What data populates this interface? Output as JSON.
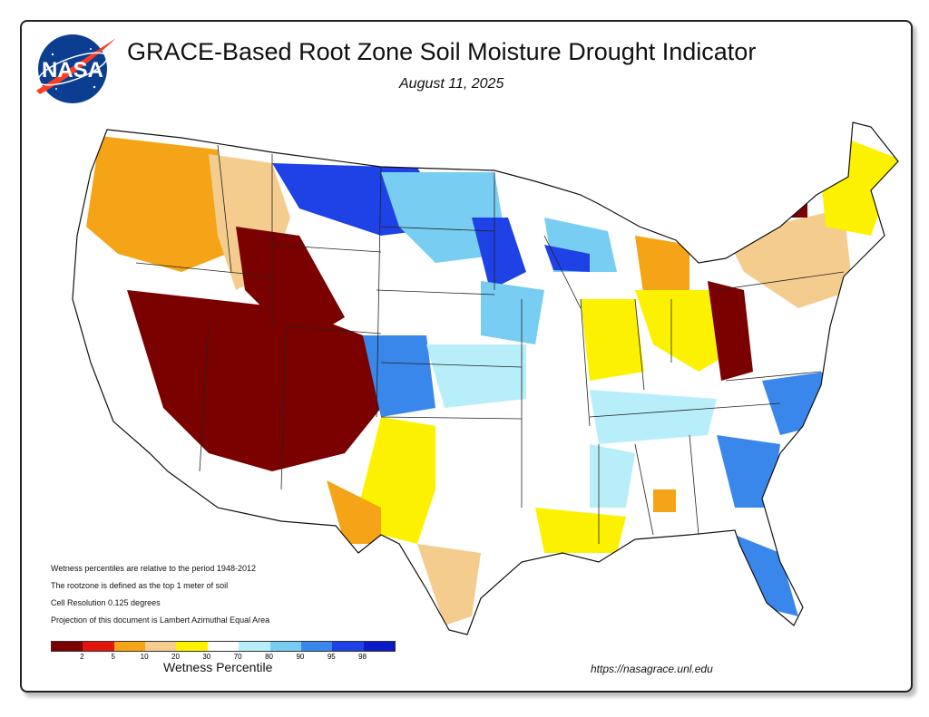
{
  "header": {
    "title": "GRACE-Based Root Zone Soil  Moisture Drought Indicator",
    "date": "August 11, 2025",
    "logo_text": "NASA"
  },
  "notes": [
    "Wetness percentiles are relative to the period 1948-2012",
    "The rootzone is defined as the top 1 meter of soil",
    "Cell Resolution 0.125 degrees",
    "Projection of this document is Lambert Azimuthal Equal Area"
  ],
  "legend": {
    "title": "Wetness Percentile",
    "colors": [
      "#7b0000",
      "#e3140d",
      "#f4a416",
      "#f4cd8e",
      "#fcf200",
      "#ffffff",
      "#b8eef9",
      "#78cdf2",
      "#3a87eb",
      "#1e42e6",
      "#0a1ac8"
    ],
    "ticks": [
      "2",
      "5",
      "10",
      "20",
      "30",
      "70",
      "80",
      "90",
      "95",
      "98"
    ]
  },
  "footer": {
    "url": "https://nasagrace.unl.edu"
  }
}
